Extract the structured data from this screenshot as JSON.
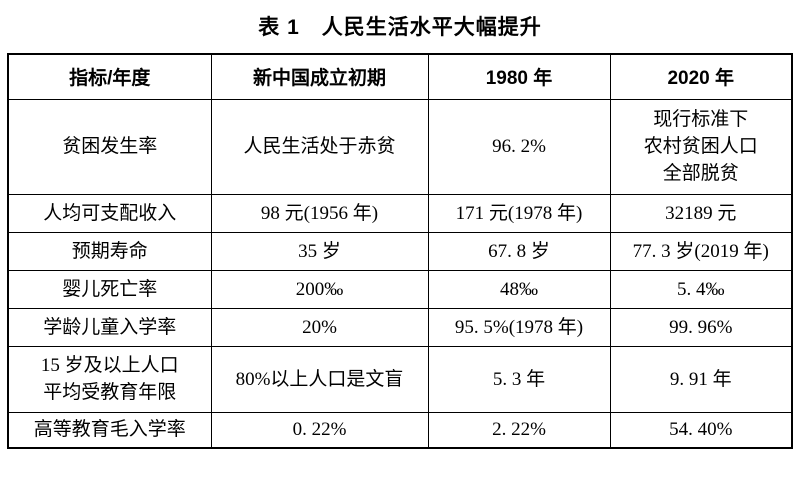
{
  "title": "表 1　人民生活水平大幅提升",
  "table": {
    "headers": [
      "指标/年度",
      "新中国成立初期",
      "1980 年",
      "2020 年"
    ],
    "rows": [
      [
        "贫困发生率",
        "人民生活处于赤贫",
        "96. 2%",
        "现行标准下\n农村贫困人口\n全部脱贫"
      ],
      [
        "人均可支配收入",
        "98 元(1956 年)",
        "171 元(1978 年)",
        "32189 元"
      ],
      [
        "预期寿命",
        "35 岁",
        "67. 8 岁",
        "77. 3 岁(2019 年)"
      ],
      [
        "婴儿死亡率",
        "200‰",
        "48‰",
        "5. 4‰"
      ],
      [
        "学龄儿童入学率",
        "20%",
        "95. 5%(1978 年)",
        "99. 96%"
      ],
      [
        "15 岁及以上人口\n平均受教育年限",
        "80%以上人口是文盲",
        "5. 3 年",
        "9. 91 年"
      ],
      [
        "高等教育毛入学率",
        "0. 22%",
        "2. 22%",
        "54. 40%"
      ]
    ]
  }
}
